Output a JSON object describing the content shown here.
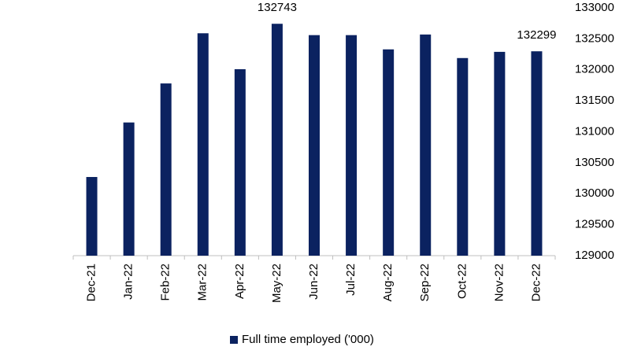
{
  "chart_data": {
    "type": "bar",
    "categories": [
      "Dec-21",
      "Jan-22",
      "Feb-22",
      "Mar-22",
      "Apr-22",
      "May-22",
      "Jun-22",
      "Jul-22",
      "Aug-22",
      "Sep-22",
      "Oct-22",
      "Nov-22",
      "Dec-22"
    ],
    "series": [
      {
        "name": "Full time employed ('000)",
        "color": "#0b2260",
        "values": [
          130270,
          131150,
          131780,
          132590,
          132010,
          132743,
          132560,
          132560,
          132330,
          132570,
          132190,
          132290,
          132299
        ],
        "value_labels": [
          null,
          null,
          null,
          null,
          null,
          "132743",
          null,
          null,
          null,
          null,
          null,
          null,
          "132299"
        ]
      }
    ],
    "ylim": [
      129000,
      133000
    ],
    "yticks": [
      129000,
      129500,
      130000,
      130500,
      131000,
      131500,
      132000,
      132500,
      133000
    ],
    "y_axis_side": "right",
    "grid": false,
    "legend": "bottom"
  }
}
